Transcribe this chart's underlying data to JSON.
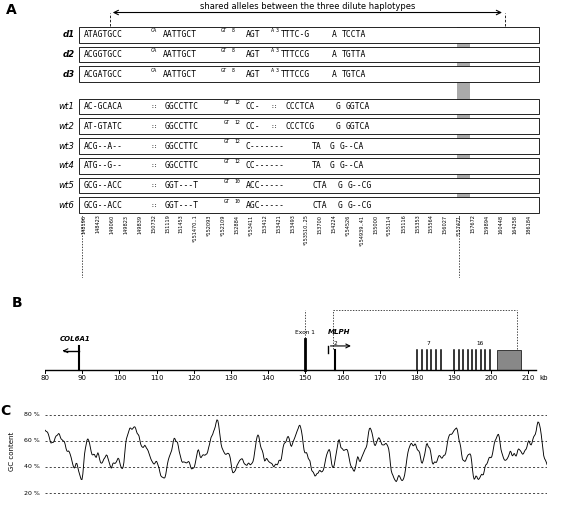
{
  "panel_A": {
    "arrow_text": "shared alleles between the three dilute haplotypes",
    "rows_d": [
      {
        "label": "d1",
        "seq_left": "ATAGTGCC",
        "ca": "CA",
        "seq2": "AATTGCT",
        "gt": "GT8",
        "seq3": "AGT",
        "a3": "A3",
        "seq4": "TTTC-G",
        "highlight": "A",
        "seq5": "TCCTA"
      },
      {
        "label": "d2",
        "seq_left": "ACGGTGCC",
        "ca": "CA",
        "seq2": "AATTGCT",
        "gt": "GT8",
        "seq3": "AGT",
        "a3": "A3",
        "seq4": "TTTCCG",
        "highlight": "A",
        "seq5": "TGTTA"
      },
      {
        "label": "d3",
        "seq_left": "ACGATGCC",
        "ca": "CA",
        "seq2": "AATTGCT",
        "gt": "GT8",
        "seq3": "AGT",
        "a3": "A3",
        "seq4": "TTTCCG",
        "highlight": "A",
        "seq5": "TGTCA"
      }
    ],
    "rows_wt": [
      {
        "label": "wt1",
        "seq_left": "AC-GCACA",
        "dot": "::",
        "seq2": "GGCCTTC",
        "gt": "GT12",
        "seq3": "CC-",
        "dot2": "::",
        "seq4": "CCCTCA",
        "highlight": "G",
        "seq5": "GGTCA"
      },
      {
        "label": "wt2",
        "seq_left": "AT-GTATC",
        "dot": "::",
        "seq2": "GGCCTTC",
        "gt": "GT12",
        "seq3": "CC-",
        "dot2": "::",
        "seq4": "CCCTCG",
        "highlight": "G",
        "seq5": "GGTCA"
      },
      {
        "label": "wt3",
        "seq_left": "ACG--A--",
        "dot": "::",
        "seq2": "GGCCTTC",
        "gt": "GT12",
        "seq3": "C-------",
        "dot2": "",
        "seq4": "TA",
        "highlight": "G",
        "seq5": "G--CA"
      },
      {
        "label": "wt4",
        "seq_left": "ATG--G--",
        "dot": "::",
        "seq2": "GGCCTTC",
        "gt": "GT12",
        "seq3": "CC------",
        "dot2": "",
        "seq4": "TA",
        "highlight": "G",
        "seq5": "G--CA"
      },
      {
        "label": "wt5",
        "seq_left": "GCG--ACC",
        "dot": "::",
        "seq2": "GGT---T",
        "gt": "GT10",
        "seq3": "ACC-----",
        "dot2": "",
        "seq4": "CTA",
        "highlight": "G",
        "seq5": "G--CG"
      },
      {
        "label": "wt6",
        "seq_left": "GCG--ACC",
        "dot": "::",
        "seq2": "GGT---T",
        "gt": "GT10",
        "seq3": "AGC-----",
        "dot2": "",
        "seq4": "CTA",
        "highlight": "G",
        "seq5": "G--CG"
      }
    ],
    "position_labels": [
      "148196",
      "148423",
      "149060",
      "149823",
      "149839",
      "150732",
      "151119",
      "151453",
      "*151470..1",
      "*152093",
      "*152109",
      "152884",
      "*153411",
      "153412",
      "153421",
      "153493",
      "*153510..25",
      "153700",
      "154224",
      "*154526",
      "*154939..41",
      "155000",
      "*155114",
      "155116",
      "155353",
      "155564",
      "156027",
      "*157471",
      "157672",
      "159894",
      "160448",
      "164258",
      "186184"
    ]
  },
  "panel_B": {
    "xlim": [
      80,
      215
    ],
    "xticks": [
      80,
      90,
      100,
      110,
      120,
      130,
      140,
      150,
      160,
      170,
      180,
      190,
      200,
      210
    ],
    "xlabel": "kb"
  },
  "panel_C": {
    "ylabel": "GC content",
    "ytick_labels": [
      "20 %",
      "40 %",
      "60 %",
      "80 %"
    ],
    "ytick_values": [
      20,
      40,
      60,
      80
    ]
  }
}
